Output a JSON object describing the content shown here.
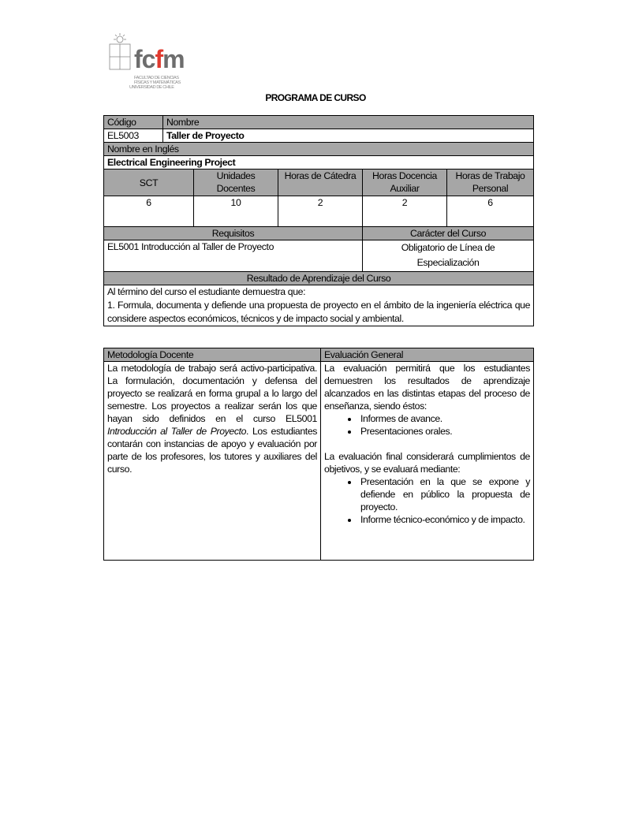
{
  "logo": {
    "letters": "fcfm",
    "lines": [
      "FACULTAD DE CIENCIAS",
      "FÍSICAS Y MATEMÁTICAS",
      "UNIVERSIDAD DE CHILE"
    ],
    "accent": "#e03a2f"
  },
  "title": "PROGRAMA DE CURSO",
  "course": {
    "code_label": "Código",
    "name_label": "Nombre",
    "code": "EL5003",
    "name": "Taller de Proyecto",
    "english_label": "Nombre en Inglés",
    "english_name": "Electrical Engineering Project",
    "units_headers": [
      "SCT",
      "Unidades Docentes",
      "Horas de Cátedra",
      "Horas Docencia Auxiliar",
      "Horas de Trabajo Personal"
    ],
    "units_values": [
      "6",
      "10",
      "2",
      "2",
      "6"
    ],
    "requisites_label": "Requisitos",
    "character_label": "Carácter del Curso",
    "requisites": "EL5001 Introducción al Taller de Proyecto",
    "character": "Obligatorio de Línea de Especialización",
    "outcome_label": "Resultado de Aprendizaje del Curso",
    "outcome_intro": "Al término del curso el estudiante demuestra que:",
    "outcome_1": "1. Formula, documenta y defiende una propuesta de proyecto en el ámbito de la ingeniería eléctrica que considere aspectos económicos, técnicos y de impacto social y ambiental."
  },
  "methodology": {
    "label": "Metodología Docente",
    "text_1": "La metodología de trabajo será activo-participativa. La formulación, documentación y defensa del proyecto se realizará en forma grupal a lo largo del semestre. Los proyectos a realizar serán los que hayan sido definidos en el curso EL5001 ",
    "text_italic": "Introducción al Taller de Proyecto",
    "text_2": ". Los estudiantes contarán con instancias de apoyo y evaluación por parte de los profesores, los tutores y auxiliares del curso."
  },
  "evaluation": {
    "label": "Evaluación General",
    "intro": "La evaluación  permitirá que los estudiantes demuestren los resultados de aprendizaje alcanzados en las distintas etapas del proceso de enseñanza, siendo éstos:",
    "items_1": [
      "Informes de avance.",
      "Presentaciones orales."
    ],
    "final": "La evaluación final considerará cumplimientos de objetivos, y se evaluará mediante:",
    "items_2": [
      "Presentación en la que se expone y defiende en público la propuesta de proyecto.",
      "Informe técnico-económico y de impacto."
    ]
  }
}
